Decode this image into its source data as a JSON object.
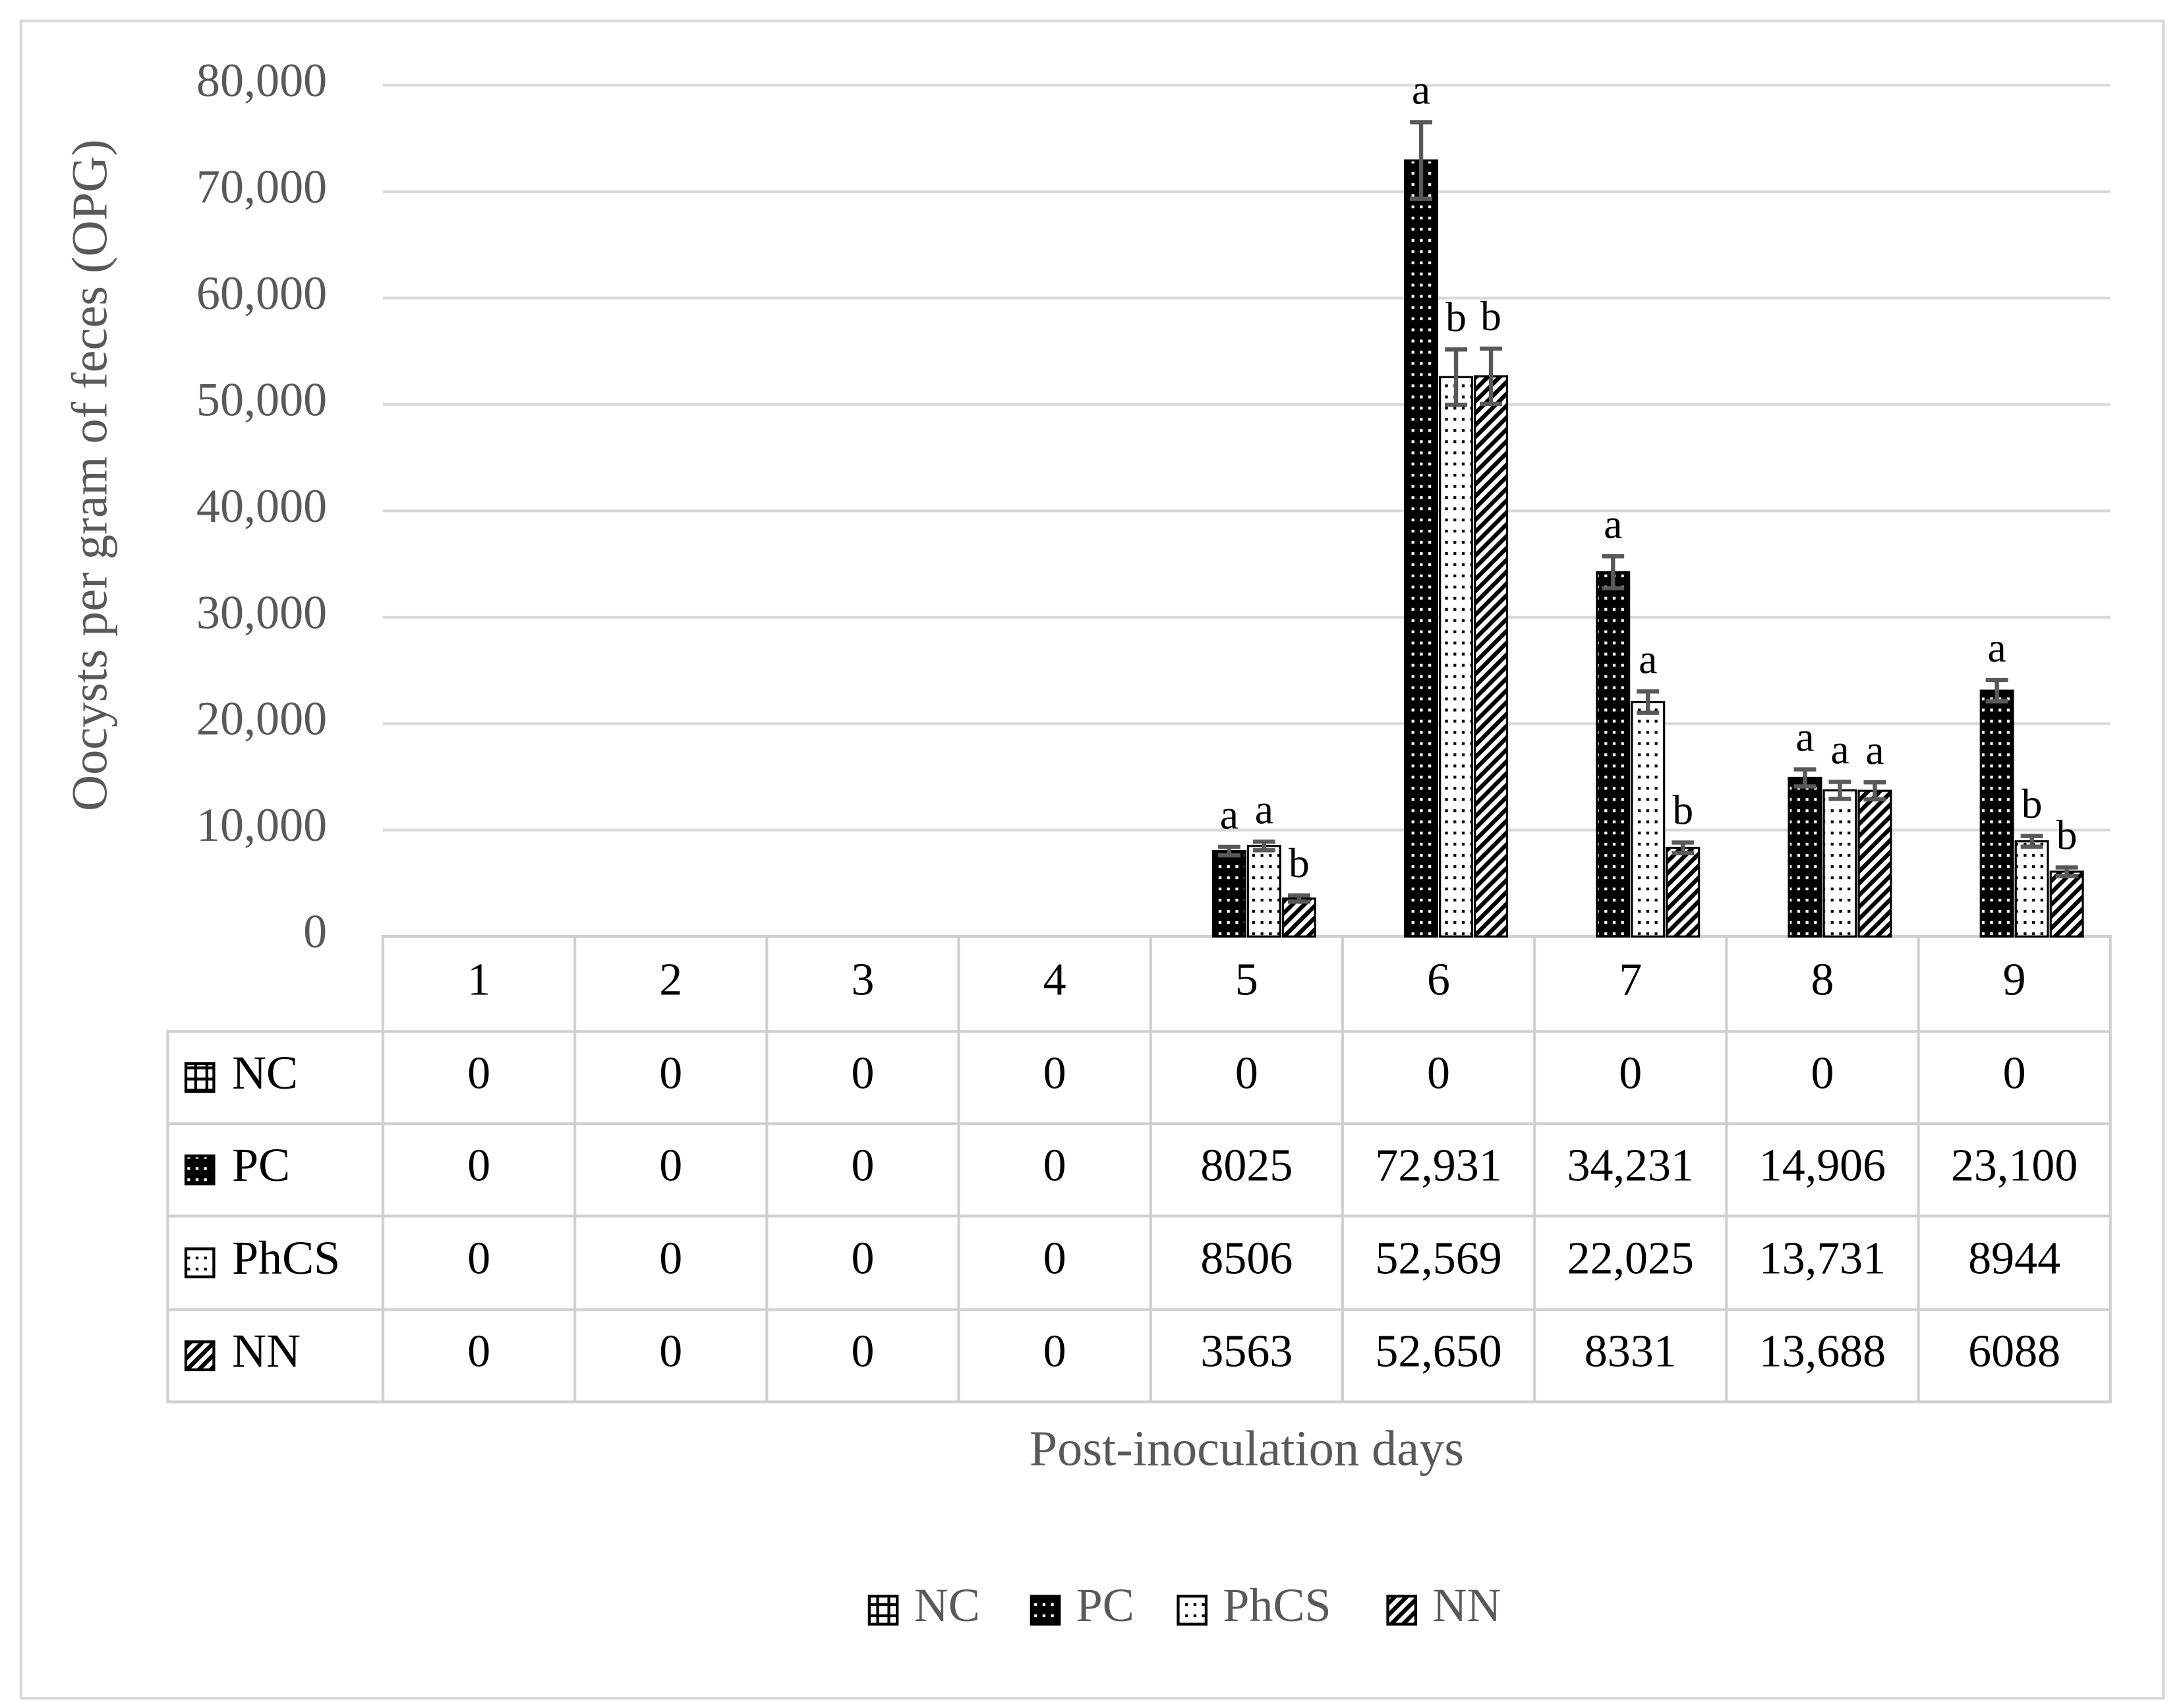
{
  "chart_data": {
    "type": "bar",
    "y_label": "Oocysts per gram of feces (OPG)",
    "x_label": "Post-inoculation days",
    "categories": [
      "1",
      "2",
      "3",
      "4",
      "5",
      "6",
      "7",
      "8",
      "9"
    ],
    "ylim": [
      0,
      80000
    ],
    "yticks": [
      0,
      {
        "value": 10000,
        "label": "10,000"
      },
      {
        "value": 20000,
        "label": "20,000"
      },
      {
        "value": 30000,
        "label": "30,000"
      },
      {
        "value": 40000,
        "label": "40,000"
      },
      {
        "value": 50000,
        "label": "50,000"
      },
      {
        "value": 60000,
        "label": "60,000"
      },
      {
        "value": 70000,
        "label": "70,000"
      },
      {
        "value": 80000,
        "label": "80,000"
      }
    ],
    "grid": true,
    "legend": "bottom",
    "series": [
      {
        "name": "NC",
        "color": "#000000",
        "pattern": "grid",
        "values": [
          0,
          0,
          0,
          0,
          0,
          0,
          0,
          0,
          0
        ],
        "value_labels": [
          "0",
          "0",
          "0",
          "0",
          "0",
          "0",
          "0",
          "0",
          "0"
        ],
        "errors": [
          null,
          null,
          null,
          null,
          null,
          null,
          null,
          null,
          null
        ],
        "letters": [
          null,
          null,
          null,
          null,
          null,
          null,
          null,
          null,
          null
        ]
      },
      {
        "name": "PC",
        "color": "#000000",
        "pattern": "dots-dark",
        "values": [
          0,
          0,
          0,
          0,
          8025,
          72931,
          34231,
          14906,
          23100
        ],
        "value_labels": [
          "0",
          "0",
          "0",
          "0",
          "8025",
          "72,931",
          "34,231",
          "14,906",
          "23,100"
        ],
        "errors": [
          null,
          null,
          null,
          null,
          400,
          3600,
          1500,
          800,
          1000
        ],
        "letters": [
          null,
          null,
          null,
          null,
          "a",
          "a",
          "a",
          "a",
          "a"
        ]
      },
      {
        "name": "PhCS",
        "color": "#000000",
        "pattern": "dots-light",
        "values": [
          0,
          0,
          0,
          0,
          8506,
          52569,
          22025,
          13731,
          8944
        ],
        "value_labels": [
          "0",
          "0",
          "0",
          "0",
          "8506",
          "52,569",
          "22,025",
          "13,731",
          "8944"
        ],
        "errors": [
          null,
          null,
          null,
          null,
          400,
          2600,
          1000,
          800,
          500
        ],
        "letters": [
          null,
          null,
          null,
          null,
          "a",
          "b",
          "a",
          "a",
          "b"
        ]
      },
      {
        "name": "NN",
        "color": "#000000",
        "pattern": "stripes",
        "values": [
          0,
          0,
          0,
          0,
          3563,
          52650,
          8331,
          13688,
          6088
        ],
        "value_labels": [
          "0",
          "0",
          "0",
          "0",
          "3563",
          "52,650",
          "8331",
          "13,688",
          "6088"
        ],
        "errors": [
          null,
          null,
          null,
          null,
          300,
          2600,
          500,
          800,
          400
        ],
        "letters": [
          null,
          null,
          null,
          null,
          "b",
          "b",
          "b",
          "a",
          "b"
        ]
      }
    ]
  }
}
